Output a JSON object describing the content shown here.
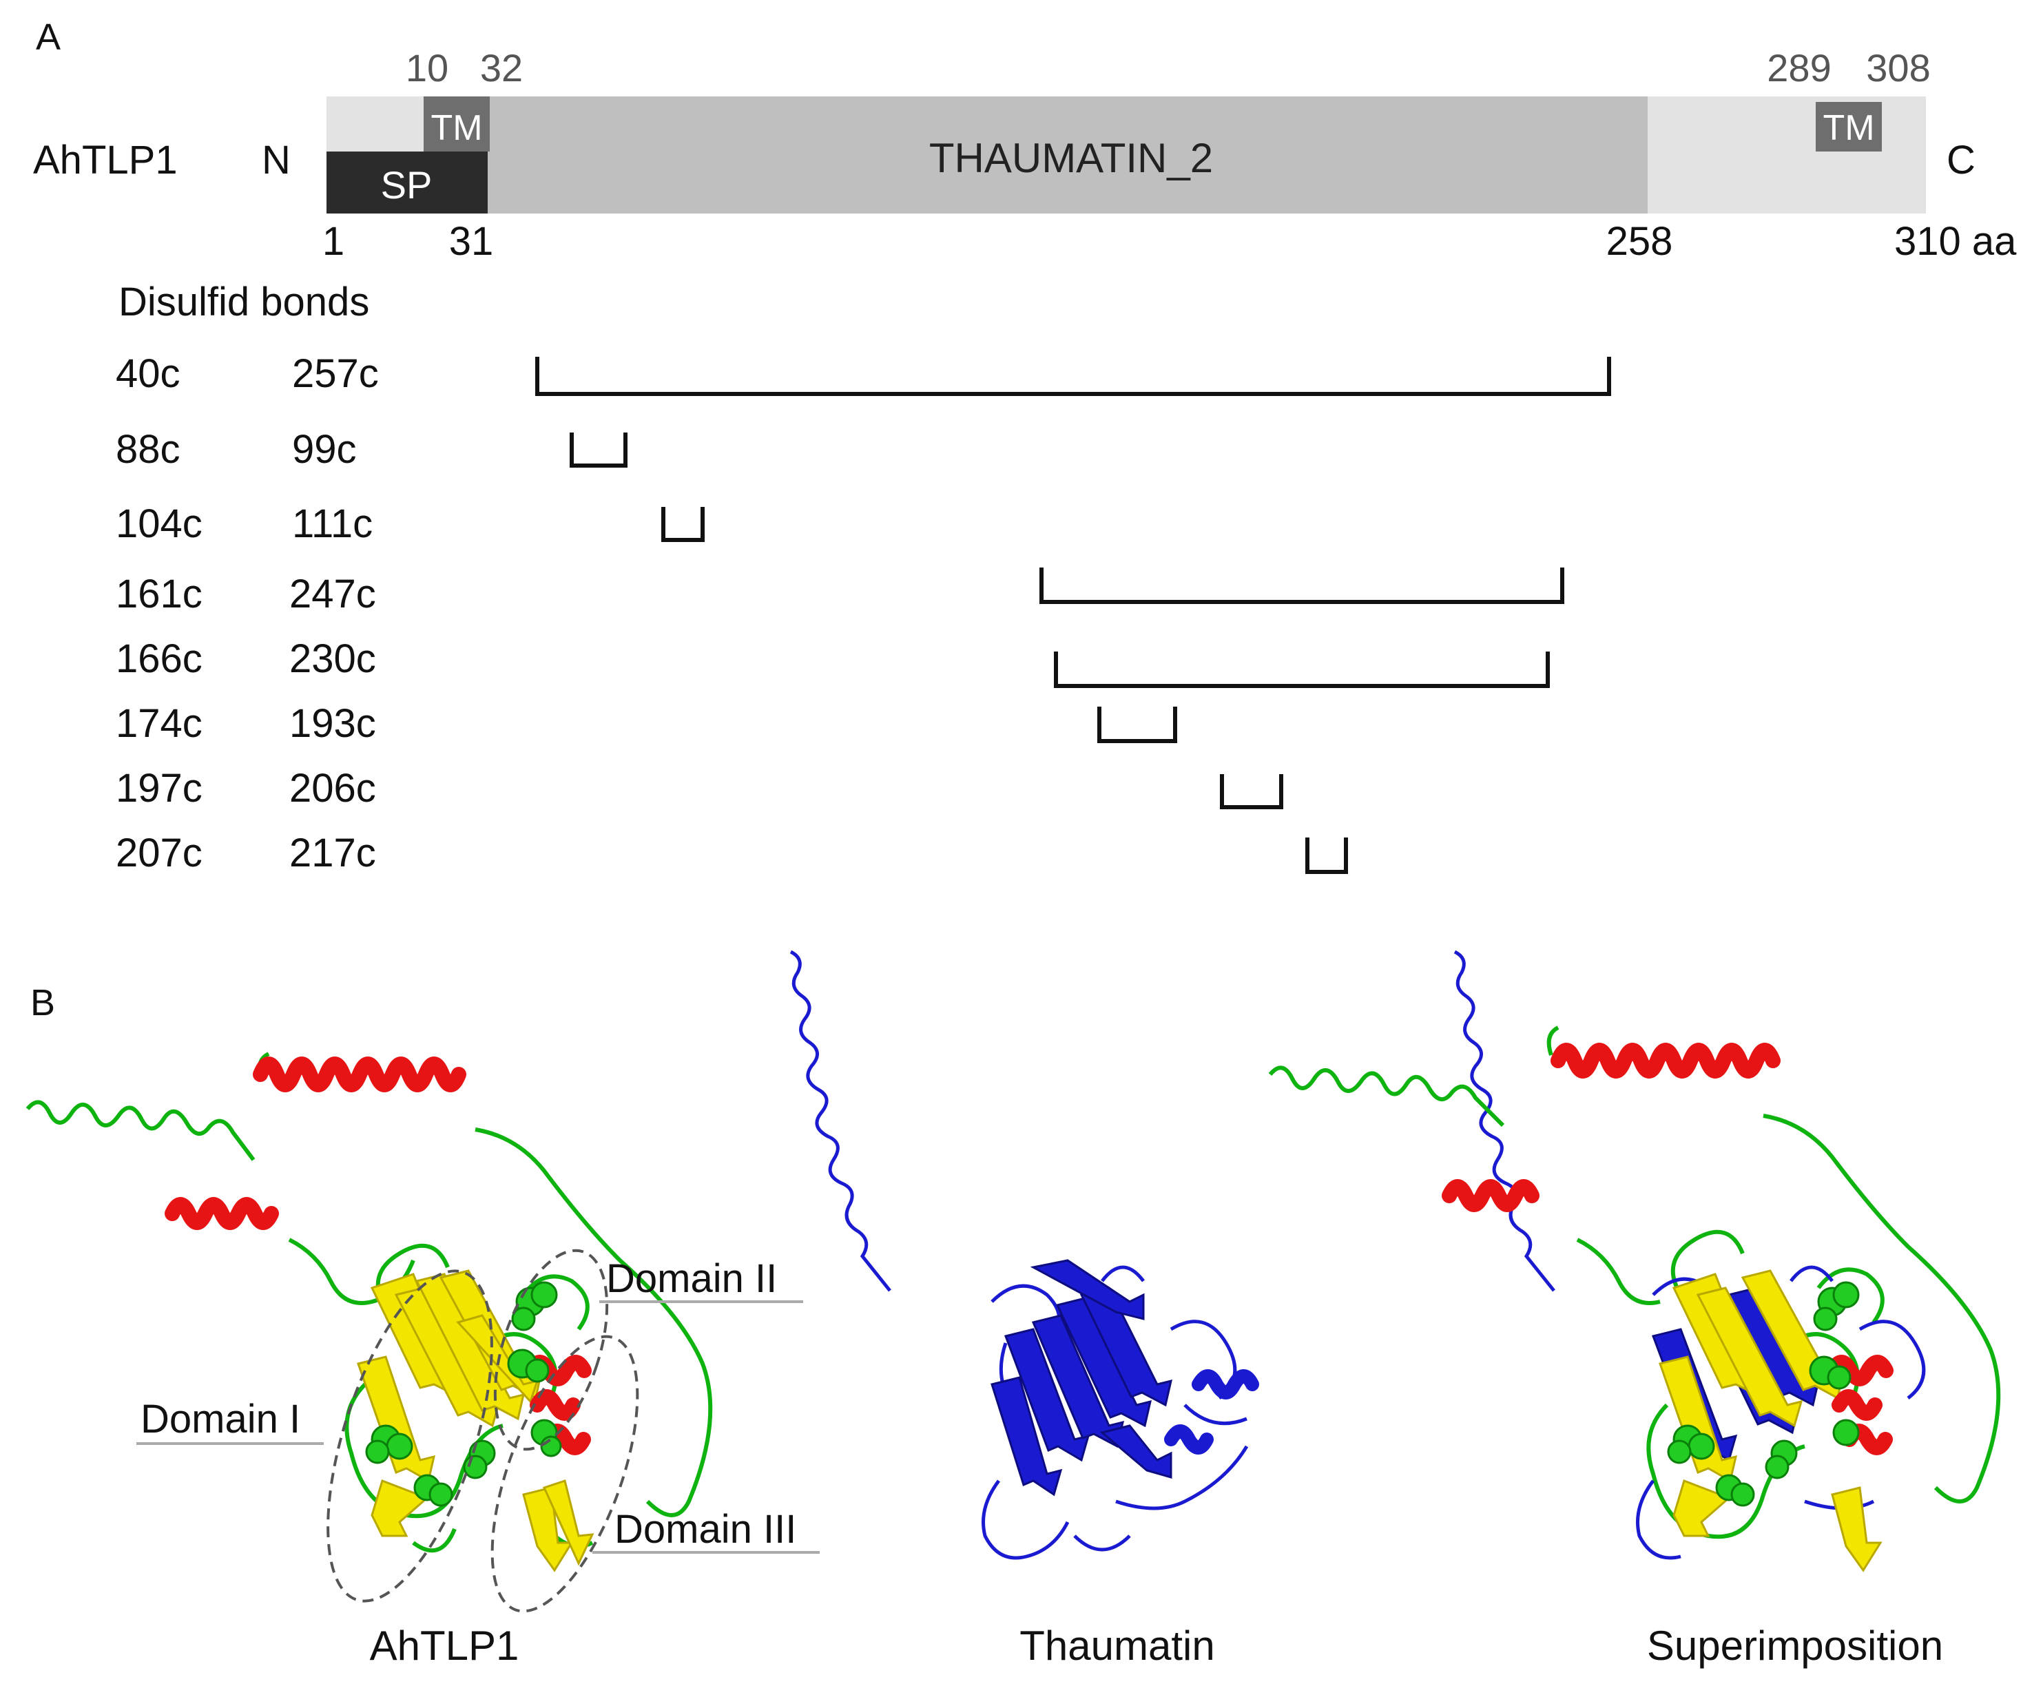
{
  "panel_a": {
    "label": "A",
    "protein": "AhTLP1",
    "n_term": "N",
    "c_term": "C",
    "top_ticks": [
      "10",
      "32",
      "289",
      "308"
    ],
    "bottom_ticks": [
      "1",
      "31",
      "258",
      "310 aa"
    ],
    "sp_label": "SP",
    "tm_label": "TM",
    "domain_label": "THAUMATIN_2",
    "disulfide_title": "Disulfid bonds",
    "disulfide_bonds": [
      {
        "a": "40c",
        "b": "257c"
      },
      {
        "a": "88c",
        "b": "99c"
      },
      {
        "a": "104c",
        "b": "111c"
      },
      {
        "a": "161c",
        "b": "247c"
      },
      {
        "a": "166c",
        "b": "230c"
      },
      {
        "a": "174c",
        "b": "193c"
      },
      {
        "a": "197c",
        "b": "206c"
      },
      {
        "a": "207c",
        "b": "217c"
      }
    ]
  },
  "panel_b": {
    "label": "B",
    "domain_1": "Domain I",
    "domain_2": "Domain II",
    "domain_3": "Domain III",
    "structure_1": "AhTLP1",
    "structure_2": "Thaumatin",
    "structure_3": "Superimposition"
  },
  "colors": {
    "helix": "#e61414",
    "strand": "#f2e600",
    "loop": "#0fb30f",
    "thaumatin": "#1a1ad1",
    "sp": "#2b2b2b",
    "tm": "#6e6e6e",
    "domain": "#bfbfbf",
    "backbone": "#e3e3e3"
  }
}
